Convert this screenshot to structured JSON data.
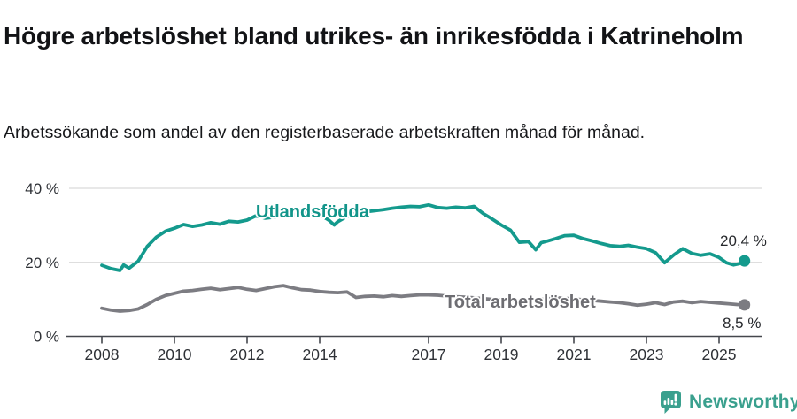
{
  "header": {
    "title": "Högre arbetslöshet bland utrikes- än inrikesfödda i Katrineholm",
    "subtitle": "Arbetssökande som andel av den registerbaserade arbetskraften månad för månad."
  },
  "chart_data": {
    "type": "line",
    "title": "Högre arbetslöshet bland utrikes- än inrikesfödda i Katrineholm",
    "subtitle": "Arbetssökande som andel av den registerbaserade arbetskraften månad för månad.",
    "grid": "horizontal",
    "legend": "inline-labels-on-lines",
    "x_axis": {
      "unit": "year",
      "ticks": [
        2008,
        2010,
        2012,
        2014,
        2017,
        2019,
        2021,
        2023,
        2025
      ],
      "range": [
        2008,
        2025.7
      ]
    },
    "y_axis": {
      "unit": "%",
      "ticks": [
        {
          "value": 0,
          "label": "0 %"
        },
        {
          "value": 20,
          "label": "20 %"
        },
        {
          "value": 40,
          "label": "40 %"
        }
      ],
      "range": [
        0,
        40
      ]
    },
    "series": [
      {
        "name": "Utlandsfödda",
        "color": "#149a8d",
        "label_color": "#12958a",
        "end_value": 20.4,
        "end_label": "20,4 %",
        "points": [
          [
            2008.0,
            19.2
          ],
          [
            2008.25,
            18.3
          ],
          [
            2008.5,
            17.8
          ],
          [
            2008.6,
            19.3
          ],
          [
            2008.75,
            18.4
          ],
          [
            2009.0,
            20.3
          ],
          [
            2009.25,
            24.3
          ],
          [
            2009.5,
            26.8
          ],
          [
            2009.75,
            28.4
          ],
          [
            2010.0,
            29.2
          ],
          [
            2010.25,
            30.2
          ],
          [
            2010.5,
            29.7
          ],
          [
            2010.75,
            30.1
          ],
          [
            2011.0,
            30.7
          ],
          [
            2011.25,
            30.3
          ],
          [
            2011.5,
            31.1
          ],
          [
            2011.75,
            30.9
          ],
          [
            2012.0,
            31.4
          ],
          [
            2012.25,
            32.6
          ],
          [
            2012.5,
            31.9
          ],
          [
            2012.75,
            32.2
          ],
          [
            2013.0,
            33.1
          ],
          [
            2013.25,
            32.6
          ],
          [
            2013.5,
            33.8
          ],
          [
            2013.75,
            33.3
          ],
          [
            2014.0,
            32.9
          ],
          [
            2014.25,
            31.4
          ],
          [
            2014.4,
            30.1
          ],
          [
            2014.5,
            31.0
          ],
          [
            2014.75,
            32.4
          ],
          [
            2015.0,
            33.3
          ],
          [
            2015.25,
            33.6
          ],
          [
            2015.5,
            33.9
          ],
          [
            2015.75,
            34.2
          ],
          [
            2016.0,
            34.6
          ],
          [
            2016.25,
            34.9
          ],
          [
            2016.5,
            35.1
          ],
          [
            2016.75,
            35.0
          ],
          [
            2017.0,
            35.5
          ],
          [
            2017.25,
            34.8
          ],
          [
            2017.5,
            34.6
          ],
          [
            2017.75,
            34.9
          ],
          [
            2018.0,
            34.7
          ],
          [
            2018.25,
            35.1
          ],
          [
            2018.5,
            33.2
          ],
          [
            2018.75,
            31.7
          ],
          [
            2019.0,
            30.1
          ],
          [
            2019.25,
            28.7
          ],
          [
            2019.5,
            25.4
          ],
          [
            2019.75,
            25.6
          ],
          [
            2019.95,
            23.4
          ],
          [
            2020.1,
            25.3
          ],
          [
            2020.25,
            25.7
          ],
          [
            2020.5,
            26.4
          ],
          [
            2020.75,
            27.2
          ],
          [
            2021.0,
            27.3
          ],
          [
            2021.25,
            26.4
          ],
          [
            2021.5,
            25.8
          ],
          [
            2021.75,
            25.1
          ],
          [
            2022.0,
            24.5
          ],
          [
            2022.25,
            24.3
          ],
          [
            2022.5,
            24.6
          ],
          [
            2022.75,
            24.1
          ],
          [
            2023.0,
            23.7
          ],
          [
            2023.25,
            22.6
          ],
          [
            2023.5,
            19.9
          ],
          [
            2023.75,
            22.0
          ],
          [
            2024.0,
            23.7
          ],
          [
            2024.25,
            22.4
          ],
          [
            2024.5,
            21.9
          ],
          [
            2024.75,
            22.3
          ],
          [
            2025.0,
            21.3
          ],
          [
            2025.2,
            19.9
          ],
          [
            2025.4,
            19.3
          ],
          [
            2025.55,
            19.6
          ],
          [
            2025.7,
            20.4
          ]
        ]
      },
      {
        "name": "Total arbetslöshet",
        "color": "#7c7c82",
        "label_color": "#6d6d72",
        "end_value": 8.5,
        "end_label": "8,5 %",
        "points": [
          [
            2008.0,
            7.6
          ],
          [
            2008.25,
            7.1
          ],
          [
            2008.5,
            6.8
          ],
          [
            2008.75,
            7.0
          ],
          [
            2009.0,
            7.4
          ],
          [
            2009.25,
            8.6
          ],
          [
            2009.5,
            10.0
          ],
          [
            2009.75,
            11.0
          ],
          [
            2010.0,
            11.6
          ],
          [
            2010.25,
            12.2
          ],
          [
            2010.5,
            12.4
          ],
          [
            2010.75,
            12.7
          ],
          [
            2011.0,
            13.0
          ],
          [
            2011.25,
            12.6
          ],
          [
            2011.5,
            12.9
          ],
          [
            2011.75,
            13.2
          ],
          [
            2012.0,
            12.7
          ],
          [
            2012.25,
            12.4
          ],
          [
            2012.5,
            12.9
          ],
          [
            2012.75,
            13.4
          ],
          [
            2013.0,
            13.7
          ],
          [
            2013.25,
            13.1
          ],
          [
            2013.5,
            12.6
          ],
          [
            2013.75,
            12.5
          ],
          [
            2014.0,
            12.1
          ],
          [
            2014.25,
            11.9
          ],
          [
            2014.5,
            11.8
          ],
          [
            2014.75,
            12.0
          ],
          [
            2015.0,
            10.5
          ],
          [
            2015.25,
            10.8
          ],
          [
            2015.5,
            10.9
          ],
          [
            2015.75,
            10.7
          ],
          [
            2016.0,
            11.0
          ],
          [
            2016.25,
            10.8
          ],
          [
            2016.5,
            11.0
          ],
          [
            2016.75,
            11.2
          ],
          [
            2017.0,
            11.2
          ],
          [
            2017.25,
            11.1
          ],
          [
            2017.5,
            10.9
          ],
          [
            2017.75,
            10.7
          ],
          [
            2018.0,
            10.6
          ],
          [
            2018.25,
            10.4
          ],
          [
            2018.5,
            10.2
          ],
          [
            2018.75,
            10.0
          ],
          [
            2019.0,
            9.9
          ],
          [
            2019.25,
            9.8
          ],
          [
            2019.5,
            9.6
          ],
          [
            2019.75,
            9.7
          ],
          [
            2020.0,
            9.8
          ],
          [
            2020.25,
            10.2
          ],
          [
            2020.5,
            10.4
          ],
          [
            2020.75,
            10.3
          ],
          [
            2021.0,
            10.1
          ],
          [
            2021.25,
            9.9
          ],
          [
            2021.5,
            9.7
          ],
          [
            2021.75,
            9.5
          ],
          [
            2022.0,
            9.3
          ],
          [
            2022.25,
            9.1
          ],
          [
            2022.5,
            8.8
          ],
          [
            2022.75,
            8.4
          ],
          [
            2023.0,
            8.7
          ],
          [
            2023.25,
            9.1
          ],
          [
            2023.5,
            8.6
          ],
          [
            2023.75,
            9.3
          ],
          [
            2024.0,
            9.5
          ],
          [
            2024.25,
            9.1
          ],
          [
            2024.5,
            9.4
          ],
          [
            2024.75,
            9.2
          ],
          [
            2025.0,
            9.0
          ],
          [
            2025.25,
            8.8
          ],
          [
            2025.5,
            8.6
          ],
          [
            2025.7,
            8.5
          ]
        ]
      }
    ],
    "style_colors": {
      "gridline": "#d9d9d9",
      "axis": "#44474d",
      "tick_label": "#2e3136"
    }
  },
  "footer": {
    "brand": "Newsworthy",
    "brand_color": "#3aa08e"
  }
}
